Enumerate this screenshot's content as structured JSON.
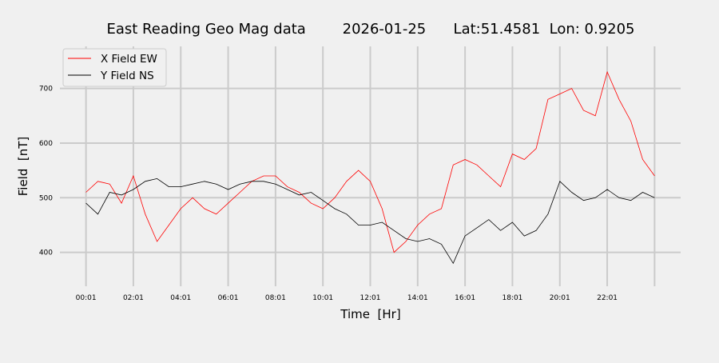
{
  "chart_data": {
    "type": "line",
    "title": "East Reading Geo Mag data        2026-01-25      Lat:51.4581  Lon: 0.9205",
    "xlabel": "Time  [Hr]",
    "ylabel": "Field  [nT]",
    "x_tick_labels": [
      "00:01",
      "02:01",
      "04:01",
      "06:01",
      "08:01",
      "10:01",
      "12:01",
      "14:01",
      "16:01",
      "18:01",
      "20:01",
      "22:01",
      ""
    ],
    "x_ticks_hours": [
      0,
      2,
      4,
      6,
      8,
      10,
      12,
      14,
      16,
      18,
      20,
      22,
      24
    ],
    "y_ticks": [
      400,
      500,
      600,
      700
    ],
    "xlim_hours": [
      -1.1,
      25.1
    ],
    "ylim": [
      338,
      777
    ],
    "grid": true,
    "legend_placement": "top-left",
    "x_hours": [
      0,
      0.5,
      1,
      1.5,
      2,
      2.5,
      3,
      3.5,
      4,
      4.5,
      5,
      5.5,
      6,
      6.5,
      7,
      7.5,
      8,
      8.5,
      9,
      9.5,
      10,
      10.5,
      11,
      11.5,
      12,
      12.5,
      13,
      13.5,
      14,
      14.5,
      15,
      15.5,
      16,
      16.5,
      17,
      17.5,
      18,
      18.5,
      19,
      19.5,
      20,
      20.5,
      21,
      21.5,
      22,
      22.5,
      23,
      23.5,
      24
    ],
    "series": [
      {
        "name": "X Field EW",
        "color": "#ff0000",
        "values": [
          510,
          530,
          525,
          490,
          540,
          470,
          420,
          450,
          480,
          500,
          480,
          470,
          490,
          510,
          530,
          540,
          540,
          520,
          510,
          490,
          480,
          500,
          530,
          550,
          530,
          480,
          400,
          420,
          450,
          470,
          480,
          560,
          570,
          560,
          540,
          520,
          580,
          570,
          590,
          680,
          690,
          700,
          660,
          650,
          730,
          680,
          640,
          570,
          540
        ]
      },
      {
        "name": "Y Field NS",
        "color": "#000000",
        "values": [
          490,
          470,
          510,
          505,
          515,
          530,
          535,
          520,
          520,
          525,
          530,
          525,
          515,
          525,
          530,
          530,
          525,
          515,
          505,
          510,
          495,
          480,
          470,
          450,
          450,
          455,
          440,
          425,
          420,
          425,
          415,
          380,
          430,
          445,
          460,
          440,
          455,
          430,
          440,
          470,
          530,
          510,
          495,
          500,
          515,
          500,
          495,
          510,
          500
        ]
      }
    ]
  }
}
